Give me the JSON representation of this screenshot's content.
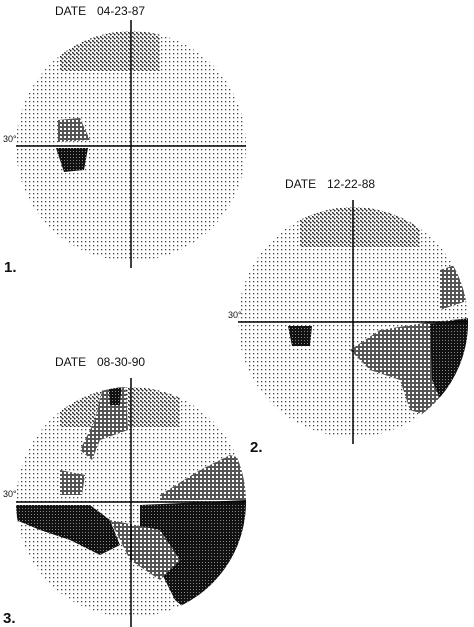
{
  "panels": [
    {
      "date_label": "DATE",
      "date": "04-23-87",
      "number": "1.",
      "axis_label": "30°"
    },
    {
      "date_label": "DATE",
      "date": "12-22-88",
      "number": "2.",
      "axis_label": "30°"
    },
    {
      "date_label": "DATE",
      "date": "08-30-90",
      "number": "3.",
      "axis_label": "30°"
    }
  ]
}
